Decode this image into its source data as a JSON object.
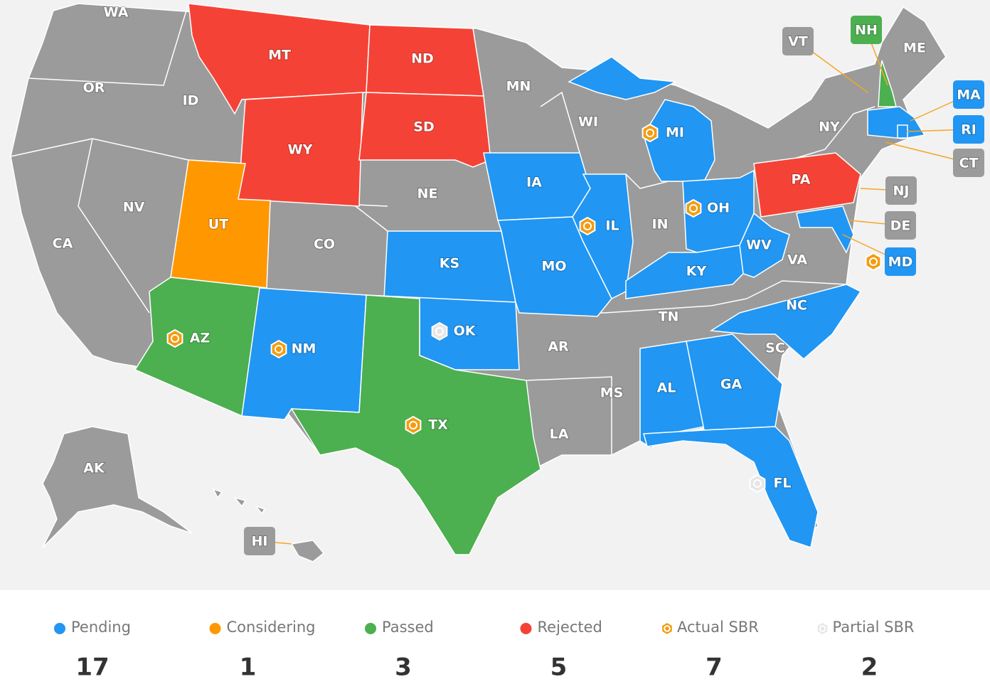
{
  "map": {
    "colors": {
      "none": "#9b9b9b"
    },
    "states": [
      {
        "label": "WA"
      },
      {
        "label": "OR"
      },
      {
        "label": "CA"
      },
      {
        "label": "ID"
      },
      {
        "label": "NV"
      },
      {
        "label": "MT",
        "color": "#f44336"
      },
      {
        "label": "WY",
        "color": "#f44336"
      },
      {
        "label": "UT",
        "color": "#ff9800"
      },
      {
        "label": "AZ",
        "color": "#4caf50",
        "sbr": "actual"
      },
      {
        "label": "CO"
      },
      {
        "label": "NM",
        "color": "#2196f3",
        "sbr": "actual"
      },
      {
        "label": "ND",
        "color": "#f44336"
      },
      {
        "label": "SD",
        "color": "#f44336"
      },
      {
        "label": "NE"
      },
      {
        "label": "KS",
        "color": "#2196f3"
      },
      {
        "label": "OK",
        "color": "#2196f3",
        "sbr": "partial"
      },
      {
        "label": "TX",
        "color": "#4caf50",
        "sbr": "actual"
      },
      {
        "label": "MN"
      },
      {
        "label": "IA",
        "color": "#2196f3"
      },
      {
        "label": "MO",
        "color": "#2196f3"
      },
      {
        "label": "AR"
      },
      {
        "label": "LA"
      },
      {
        "label": "WI"
      },
      {
        "label": "IL",
        "color": "#2196f3",
        "sbr": "actual"
      },
      {
        "label": "MI",
        "color": "#2196f3",
        "sbr": "actual"
      },
      {
        "label": "IN"
      },
      {
        "label": "OH",
        "color": "#2196f3",
        "sbr": "actual"
      },
      {
        "label": "KY",
        "color": "#2196f3"
      },
      {
        "label": "TN"
      },
      {
        "label": "MS"
      },
      {
        "label": "AL",
        "color": "#2196f3"
      },
      {
        "label": "GA",
        "color": "#2196f3"
      },
      {
        "label": "FL",
        "color": "#2196f3",
        "sbr": "partial"
      },
      {
        "label": "SC"
      },
      {
        "label": "NC",
        "color": "#2196f3"
      },
      {
        "label": "VA"
      },
      {
        "label": "WV",
        "color": "#2196f3"
      },
      {
        "label": "MD",
        "color": "#2196f3",
        "sbr": "actual"
      },
      {
        "label": "PA",
        "color": "#f44336"
      },
      {
        "label": "NY"
      },
      {
        "label": "VT"
      },
      {
        "label": "NH",
        "color": "#4caf50"
      },
      {
        "label": "ME"
      },
      {
        "label": "MA",
        "color": "#2196f3"
      },
      {
        "label": "RI",
        "color": "#2196f3"
      },
      {
        "label": "CT"
      },
      {
        "label": "NJ"
      },
      {
        "label": "DE"
      },
      {
        "label": "AK"
      },
      {
        "label": "HI"
      }
    ]
  },
  "legend": [
    {
      "label": "Pending",
      "color": "#2196f3",
      "count": 17
    },
    {
      "label": "Considering",
      "color": "#ff9800",
      "count": 1
    },
    {
      "label": "Passed",
      "color": "#4caf50",
      "count": 3
    },
    {
      "label": "Rejected",
      "color": "#f44336",
      "count": 5
    },
    {
      "label": "Actual SBR",
      "icon": "actual",
      "count": 7
    },
    {
      "label": "Partial SBR",
      "icon": "partial",
      "count": 2
    }
  ]
}
